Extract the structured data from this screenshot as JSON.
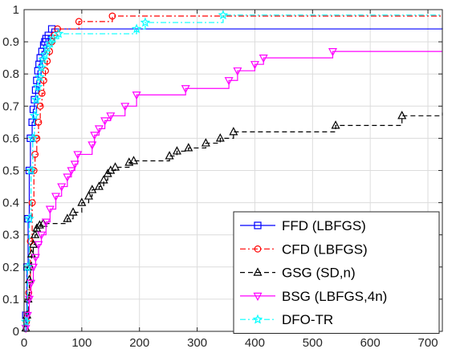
{
  "chart_data": {
    "type": "line",
    "step": true,
    "grid": true,
    "legend_position": "bottom-right",
    "xlim": [
      0,
      725
    ],
    "ylim": [
      0,
      1
    ],
    "xticks": [
      0,
      100,
      200,
      300,
      400,
      500,
      600,
      700
    ],
    "yticks": [
      0,
      0.1,
      0.2,
      0.3,
      0.4,
      0.5,
      0.6,
      0.7,
      0.8,
      0.9,
      1
    ],
    "series": [
      {
        "name": "FFD (LBFGS)",
        "color": "#0000ff",
        "line_style": "solid",
        "marker": "square",
        "points": [
          [
            3,
            0.05
          ],
          [
            5,
            0.2
          ],
          [
            7,
            0.35
          ],
          [
            9,
            0.5
          ],
          [
            11,
            0.6
          ],
          [
            14,
            0.65
          ],
          [
            16,
            0.69
          ],
          [
            18,
            0.72
          ],
          [
            20,
            0.75
          ],
          [
            22,
            0.78
          ],
          [
            24,
            0.81
          ],
          [
            26,
            0.83
          ],
          [
            28,
            0.85
          ],
          [
            31,
            0.87
          ],
          [
            34,
            0.89
          ],
          [
            36,
            0.9
          ],
          [
            38,
            0.91
          ],
          [
            42,
            0.92
          ],
          [
            48,
            0.94
          ],
          [
            725,
            0.943
          ]
        ]
      },
      {
        "name": "CFD (LBFGS)",
        "color": "#ff0000",
        "line_style": "dashdot",
        "marker": "circle",
        "points": [
          [
            4,
            0.03
          ],
          [
            8,
            0.12
          ],
          [
            11,
            0.28
          ],
          [
            14,
            0.4
          ],
          [
            17,
            0.5
          ],
          [
            19,
            0.55
          ],
          [
            22,
            0.6
          ],
          [
            25,
            0.65
          ],
          [
            28,
            0.7
          ],
          [
            31,
            0.74
          ],
          [
            34,
            0.78
          ],
          [
            37,
            0.81
          ],
          [
            40,
            0.84
          ],
          [
            44,
            0.87
          ],
          [
            48,
            0.9
          ],
          [
            52,
            0.92
          ],
          [
            58,
            0.94
          ],
          [
            95,
            0.963
          ],
          [
            153,
            0.98
          ],
          [
            725,
            0.983
          ]
        ]
      },
      {
        "name": "GSG (SD,n)",
        "color": "#000000",
        "line_style": "dashed",
        "marker": "triangle",
        "points": [
          [
            3,
            0.01
          ],
          [
            5,
            0.05
          ],
          [
            7,
            0.1
          ],
          [
            9,
            0.16
          ],
          [
            11,
            0.2
          ],
          [
            13,
            0.24
          ],
          [
            16,
            0.27
          ],
          [
            19,
            0.3
          ],
          [
            22,
            0.32
          ],
          [
            27,
            0.33
          ],
          [
            33,
            0.335
          ],
          [
            75,
            0.35
          ],
          [
            85,
            0.37
          ],
          [
            100,
            0.4
          ],
          [
            112,
            0.42
          ],
          [
            118,
            0.44
          ],
          [
            130,
            0.45
          ],
          [
            138,
            0.47
          ],
          [
            145,
            0.49
          ],
          [
            150,
            0.5
          ],
          [
            158,
            0.51
          ],
          [
            182,
            0.525
          ],
          [
            190,
            0.53
          ],
          [
            252,
            0.545
          ],
          [
            265,
            0.56
          ],
          [
            285,
            0.57
          ],
          [
            315,
            0.585
          ],
          [
            340,
            0.6
          ],
          [
            363,
            0.62
          ],
          [
            540,
            0.64
          ],
          [
            655,
            0.67
          ],
          [
            725,
            0.68
          ]
        ]
      },
      {
        "name": "BSG (LBFGS,4n)",
        "color": "#ff00ff",
        "line_style": "solid",
        "marker": "triangle-down",
        "points": [
          [
            3,
            0.01
          ],
          [
            6,
            0.05
          ],
          [
            9,
            0.1
          ],
          [
            12,
            0.15
          ],
          [
            16,
            0.2
          ],
          [
            20,
            0.23
          ],
          [
            25,
            0.27
          ],
          [
            30,
            0.3
          ],
          [
            38,
            0.34
          ],
          [
            45,
            0.38
          ],
          [
            55,
            0.42
          ],
          [
            65,
            0.45
          ],
          [
            75,
            0.48
          ],
          [
            82,
            0.5
          ],
          [
            88,
            0.52
          ],
          [
            93,
            0.55
          ],
          [
            118,
            0.58
          ],
          [
            122,
            0.61
          ],
          [
            130,
            0.63
          ],
          [
            140,
            0.655
          ],
          [
            150,
            0.67
          ],
          [
            175,
            0.7
          ],
          [
            195,
            0.735
          ],
          [
            280,
            0.755
          ],
          [
            355,
            0.78
          ],
          [
            370,
            0.81
          ],
          [
            400,
            0.83
          ],
          [
            415,
            0.85
          ],
          [
            535,
            0.87
          ],
          [
            725,
            0.87
          ]
        ]
      },
      {
        "name": "DFO-TR",
        "color": "#00ffff",
        "line_style": "dashdot",
        "marker": "star",
        "points": [
          [
            3,
            0.03
          ],
          [
            6,
            0.2
          ],
          [
            9,
            0.35
          ],
          [
            12,
            0.5
          ],
          [
            15,
            0.6
          ],
          [
            18,
            0.67
          ],
          [
            21,
            0.72
          ],
          [
            24,
            0.76
          ],
          [
            27,
            0.79
          ],
          [
            30,
            0.82
          ],
          [
            33,
            0.845
          ],
          [
            36,
            0.86
          ],
          [
            40,
            0.88
          ],
          [
            45,
            0.895
          ],
          [
            50,
            0.91
          ],
          [
            60,
            0.925
          ],
          [
            195,
            0.94
          ],
          [
            210,
            0.96
          ],
          [
            345,
            0.983
          ],
          [
            725,
            0.983
          ]
        ]
      }
    ]
  }
}
